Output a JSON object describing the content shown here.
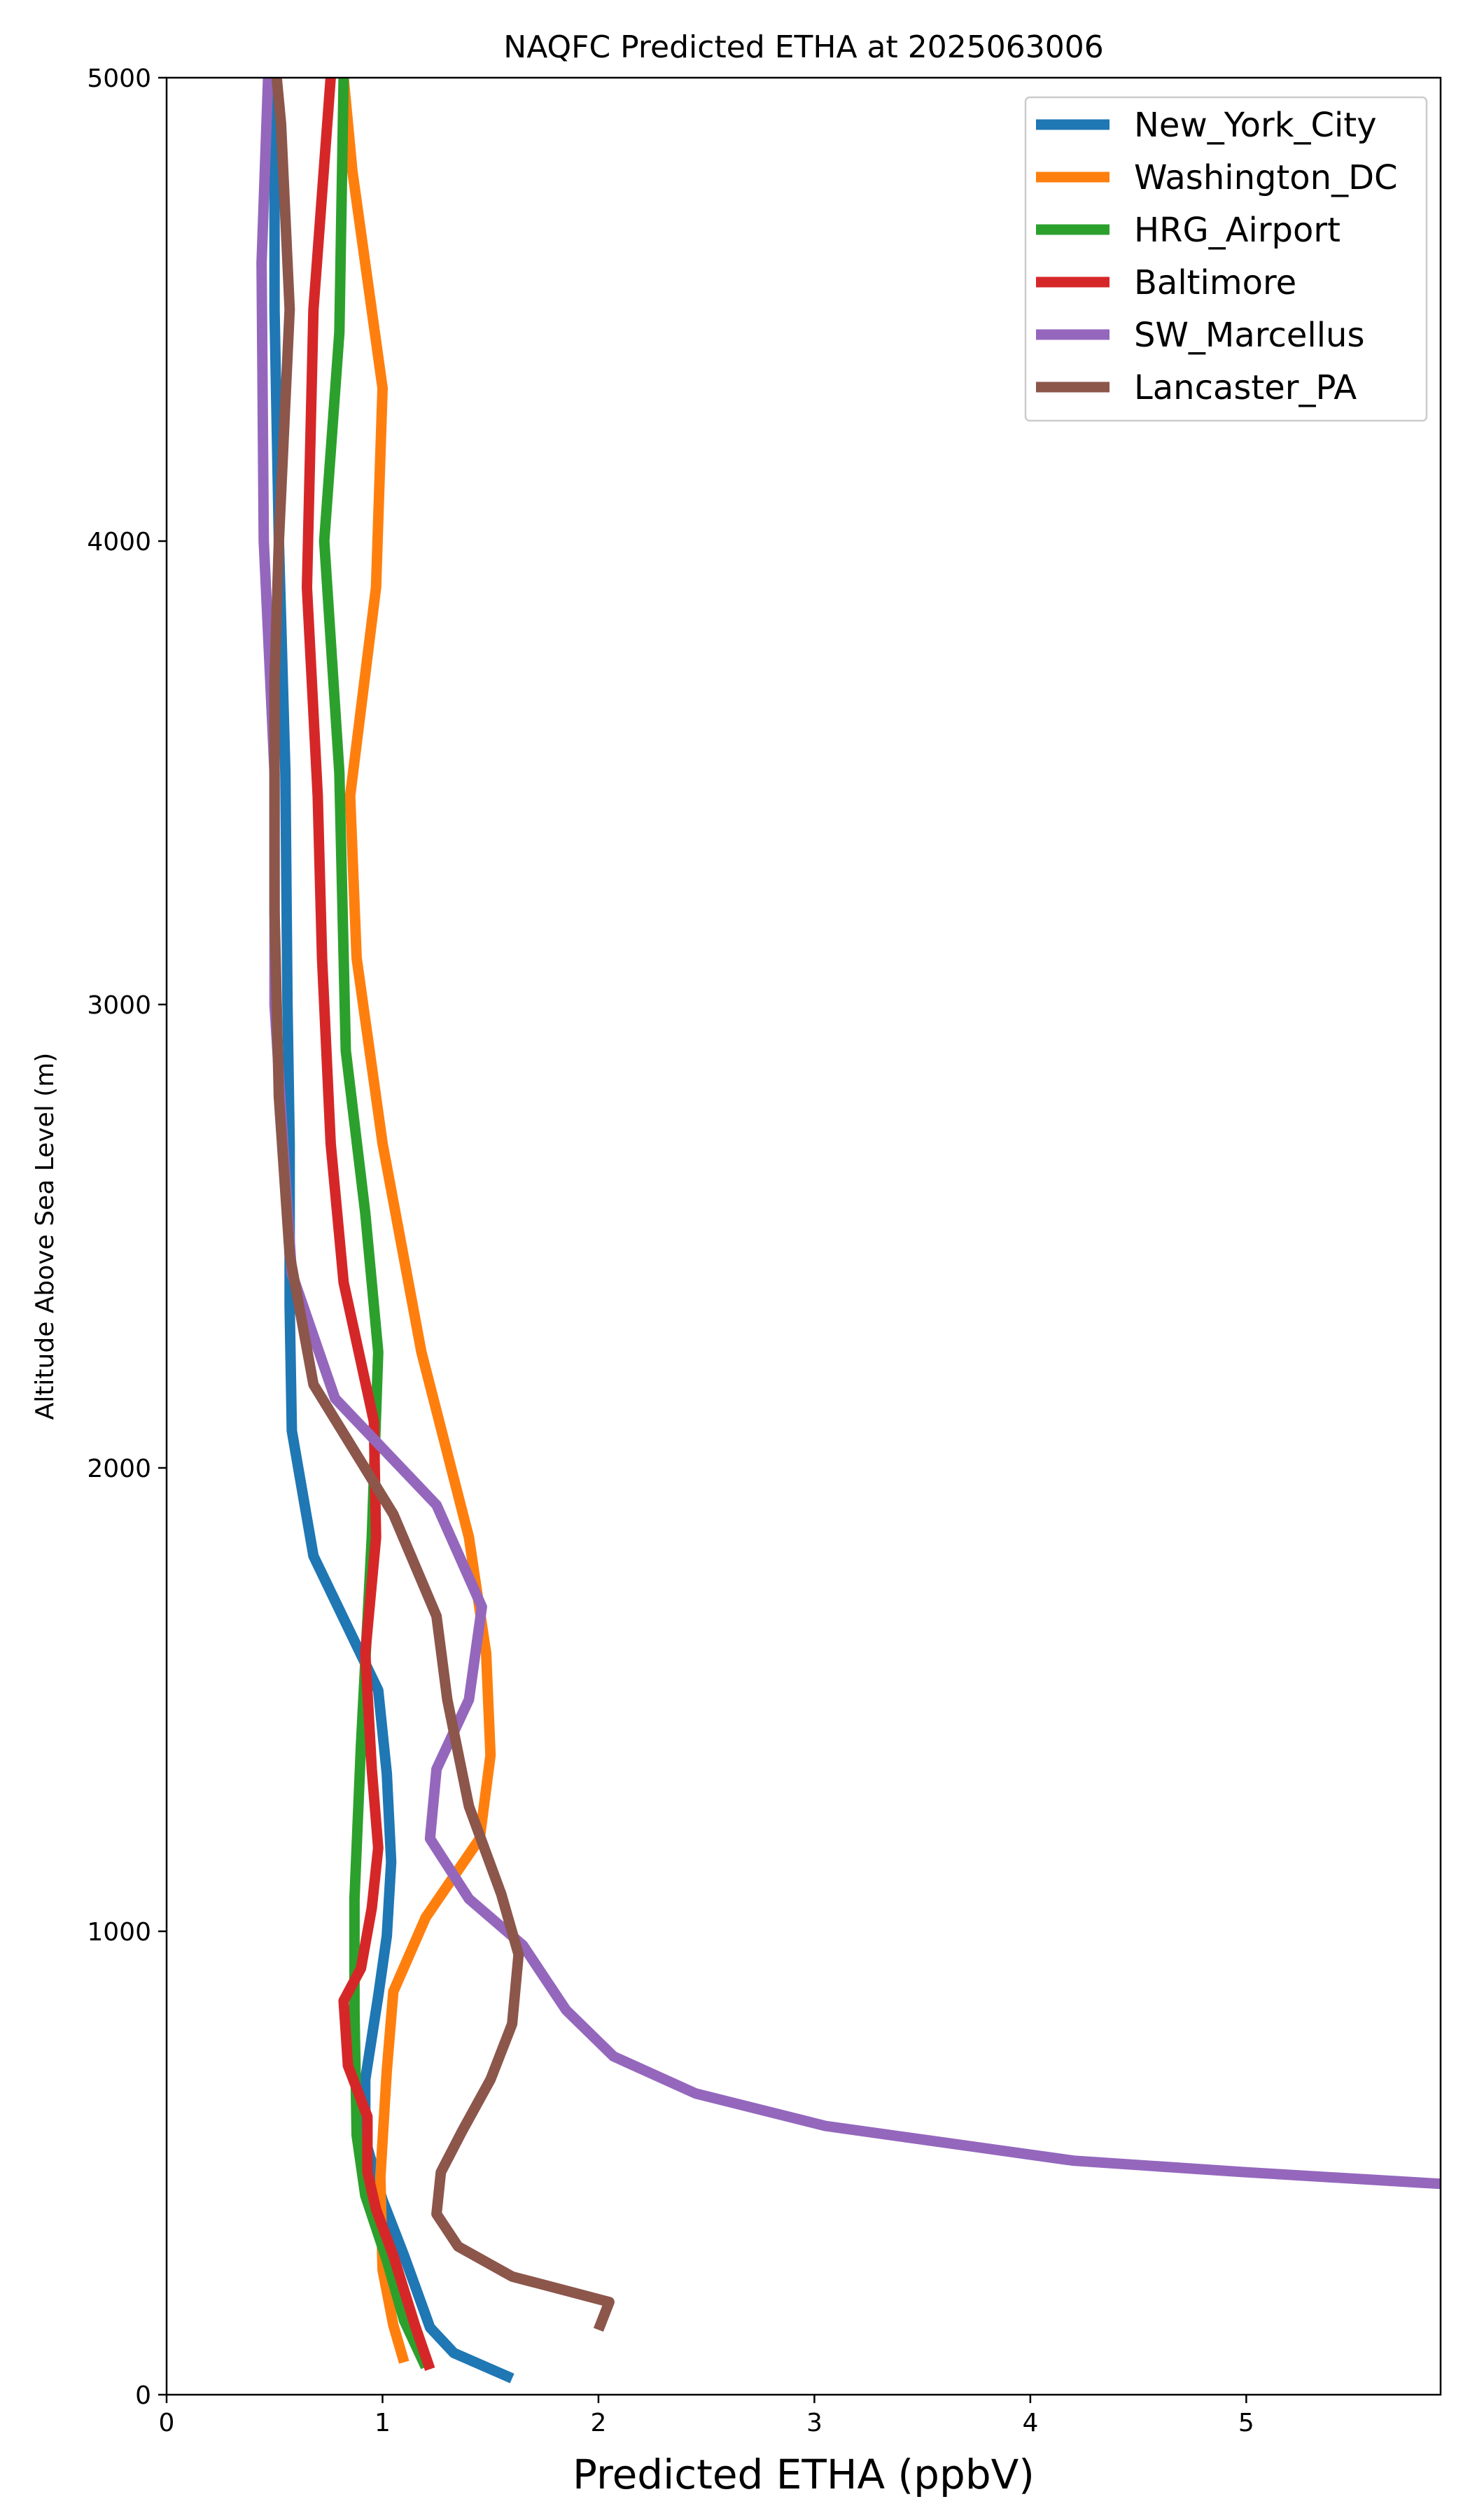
{
  "chart_data": {
    "type": "line",
    "title": "NAQFC Predicted ETHA at 2025063006",
    "xlabel": "Predicted ETHA (ppbV)",
    "ylabel": "Altitude Above Sea Level (m)",
    "xlim": [
      0,
      5.9
    ],
    "ylim": [
      0,
      5000
    ],
    "x_ticks": [
      0,
      1,
      2,
      3,
      4,
      5
    ],
    "y_ticks": [
      0,
      1000,
      2000,
      3000,
      4000,
      5000
    ],
    "grid": false,
    "legend_position": "upper right",
    "series": [
      {
        "name": "New_York_City",
        "color": "#1f77b4",
        "points": [
          [
            1.6,
            35
          ],
          [
            1.33,
            90
          ],
          [
            1.22,
            145
          ],
          [
            1.1,
            300
          ],
          [
            1.0,
            420
          ],
          [
            0.92,
            550
          ],
          [
            0.92,
            680
          ],
          [
            0.98,
            860
          ],
          [
            1.02,
            990
          ],
          [
            1.04,
            1150
          ],
          [
            1.02,
            1340
          ],
          [
            0.98,
            1520
          ],
          [
            0.68,
            1810
          ],
          [
            0.58,
            2080
          ],
          [
            0.57,
            2350
          ],
          [
            0.57,
            2700
          ],
          [
            0.56,
            3000
          ],
          [
            0.55,
            3500
          ],
          [
            0.52,
            4000
          ],
          [
            0.5,
            4500
          ],
          [
            0.5,
            5000
          ]
        ]
      },
      {
        "name": "Washington_DC",
        "color": "#ff7f0e",
        "points": [
          [
            1.1,
            70
          ],
          [
            1.05,
            150
          ],
          [
            1.0,
            270
          ],
          [
            0.99,
            470
          ],
          [
            1.02,
            700
          ],
          [
            1.05,
            870
          ],
          [
            1.2,
            1030
          ],
          [
            1.45,
            1200
          ],
          [
            1.5,
            1380
          ],
          [
            1.48,
            1600
          ],
          [
            1.4,
            1850
          ],
          [
            1.18,
            2250
          ],
          [
            1.0,
            2700
          ],
          [
            0.88,
            3100
          ],
          [
            0.85,
            3450
          ],
          [
            0.97,
            3900
          ],
          [
            1.0,
            4330
          ],
          [
            0.86,
            4800
          ],
          [
            0.82,
            5000
          ]
        ]
      },
      {
        "name": "HRG_Airport",
        "color": "#2ca02c",
        "points": [
          [
            1.2,
            60
          ],
          [
            1.1,
            160
          ],
          [
            1.02,
            290
          ],
          [
            0.92,
            430
          ],
          [
            0.88,
            560
          ],
          [
            0.87,
            830
          ],
          [
            0.87,
            1070
          ],
          [
            0.9,
            1400
          ],
          [
            0.95,
            1850
          ],
          [
            0.98,
            2250
          ],
          [
            0.92,
            2550
          ],
          [
            0.83,
            2900
          ],
          [
            0.8,
            3500
          ],
          [
            0.73,
            4000
          ],
          [
            0.8,
            4450
          ],
          [
            0.82,
            5000
          ]
        ]
      },
      {
        "name": "Baltimore",
        "color": "#d62728",
        "points": [
          [
            1.22,
            55
          ],
          [
            1.15,
            150
          ],
          [
            1.05,
            300
          ],
          [
            0.97,
            400
          ],
          [
            0.93,
            480
          ],
          [
            0.93,
            600
          ],
          [
            0.84,
            710
          ],
          [
            0.82,
            850
          ],
          [
            0.9,
            920
          ],
          [
            0.95,
            1050
          ],
          [
            0.98,
            1180
          ],
          [
            0.95,
            1350
          ],
          [
            0.92,
            1600
          ],
          [
            0.97,
            1850
          ],
          [
            0.96,
            2100
          ],
          [
            0.82,
            2400
          ],
          [
            0.76,
            2700
          ],
          [
            0.72,
            3100
          ],
          [
            0.7,
            3450
          ],
          [
            0.65,
            3900
          ],
          [
            0.68,
            4500
          ],
          [
            0.76,
            5000
          ]
        ]
      },
      {
        "name": "SW_Marcellus",
        "color": "#9467bd",
        "points": [
          [
            5.9,
            455
          ],
          [
            5.0,
            480
          ],
          [
            4.2,
            505
          ],
          [
            3.05,
            580
          ],
          [
            2.45,
            650
          ],
          [
            2.07,
            730
          ],
          [
            1.85,
            830
          ],
          [
            1.65,
            970
          ],
          [
            1.4,
            1070
          ],
          [
            1.22,
            1200
          ],
          [
            1.25,
            1350
          ],
          [
            1.4,
            1500
          ],
          [
            1.46,
            1700
          ],
          [
            1.25,
            1920
          ],
          [
            0.78,
            2150
          ],
          [
            0.58,
            2420
          ],
          [
            0.54,
            2700
          ],
          [
            0.5,
            3000
          ],
          [
            0.5,
            3500
          ],
          [
            0.45,
            4000
          ],
          [
            0.44,
            4600
          ],
          [
            0.47,
            5000
          ]
        ]
      },
      {
        "name": "Lancaster_PA",
        "color": "#8c564b",
        "points": [
          [
            2.0,
            140
          ],
          [
            2.05,
            200
          ],
          [
            1.6,
            255
          ],
          [
            1.35,
            320
          ],
          [
            1.25,
            390
          ],
          [
            1.27,
            480
          ],
          [
            1.37,
            570
          ],
          [
            1.5,
            680
          ],
          [
            1.6,
            800
          ],
          [
            1.63,
            950
          ],
          [
            1.55,
            1080
          ],
          [
            1.4,
            1270
          ],
          [
            1.3,
            1500
          ],
          [
            1.25,
            1680
          ],
          [
            1.05,
            1900
          ],
          [
            0.68,
            2180
          ],
          [
            0.57,
            2460
          ],
          [
            0.52,
            2800
          ],
          [
            0.5,
            3200
          ],
          [
            0.5,
            3700
          ],
          [
            0.52,
            4000
          ],
          [
            0.57,
            4500
          ],
          [
            0.53,
            4900
          ],
          [
            0.51,
            5000
          ]
        ]
      }
    ]
  }
}
